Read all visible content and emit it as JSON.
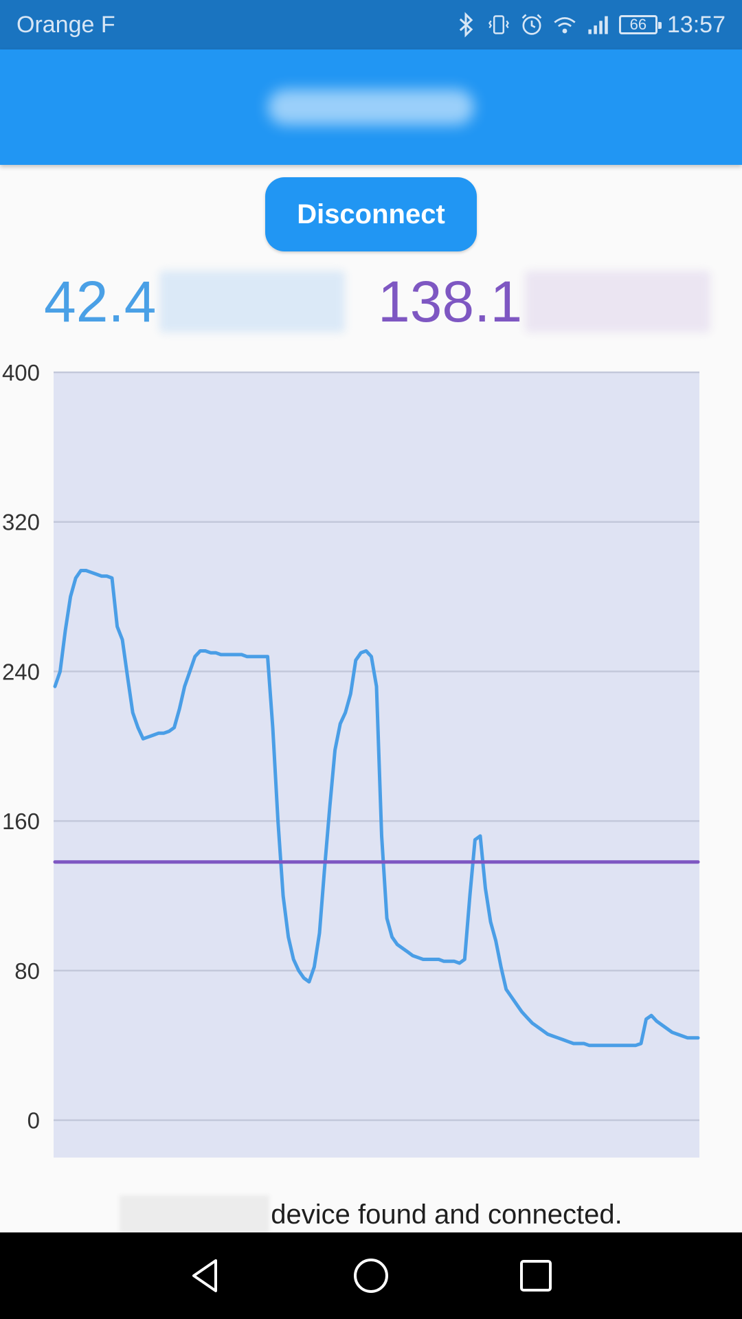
{
  "status_bar": {
    "carrier": "Orange F",
    "battery_level": "66",
    "time": "13:57",
    "icons": [
      "bluetooth-icon",
      "vibrate-icon",
      "alarm-icon",
      "wifi-icon",
      "signal-icon",
      "battery-icon"
    ]
  },
  "app_bar": {
    "title_obscured": true
  },
  "disconnect_button": {
    "label": "Disconnect"
  },
  "readouts": [
    {
      "value": "42.4",
      "color": "#4aa0e6"
    },
    {
      "value": "138.1",
      "color": "#7e57c2"
    }
  ],
  "chart_data": {
    "type": "line",
    "ylim": [
      -20,
      400
    ],
    "yticks": [
      0,
      80,
      160,
      240,
      320,
      400
    ],
    "grid": true,
    "background": "#dfe3f3",
    "series": [
      {
        "color": "#4a9ee6",
        "values": [
          232,
          240,
          262,
          280,
          290,
          294,
          294,
          293,
          292,
          291,
          291,
          290,
          264,
          257,
          237,
          218,
          210,
          204,
          205,
          206,
          207,
          207,
          208,
          210,
          220,
          232,
          240,
          248,
          251,
          251,
          250,
          250,
          249,
          249,
          249,
          249,
          249,
          248,
          248,
          248,
          248,
          248,
          210,
          160,
          120,
          98,
          86,
          80,
          76,
          74,
          82,
          100,
          135,
          168,
          198,
          212,
          218,
          228,
          246,
          250,
          251,
          248,
          232,
          152,
          108,
          98,
          94,
          92,
          90,
          88,
          87,
          86,
          86,
          86,
          86,
          85,
          85,
          85,
          84,
          86,
          120,
          150,
          152,
          124,
          106,
          96,
          82,
          70,
          66,
          62,
          58,
          55,
          52,
          50,
          48,
          46,
          45,
          44,
          43,
          42,
          41,
          41,
          41,
          40,
          40,
          40,
          40,
          40,
          40,
          40,
          40,
          40,
          40,
          41,
          54,
          56,
          53,
          51,
          49,
          47,
          46,
          45,
          44,
          44,
          44
        ]
      },
      {
        "color": "#7e57c2",
        "values": [
          138.1,
          138.1
        ]
      }
    ]
  },
  "footer": {
    "message": "device found and connected."
  },
  "nav_bar": {
    "icons": [
      "back-icon",
      "home-icon",
      "recents-icon"
    ]
  }
}
